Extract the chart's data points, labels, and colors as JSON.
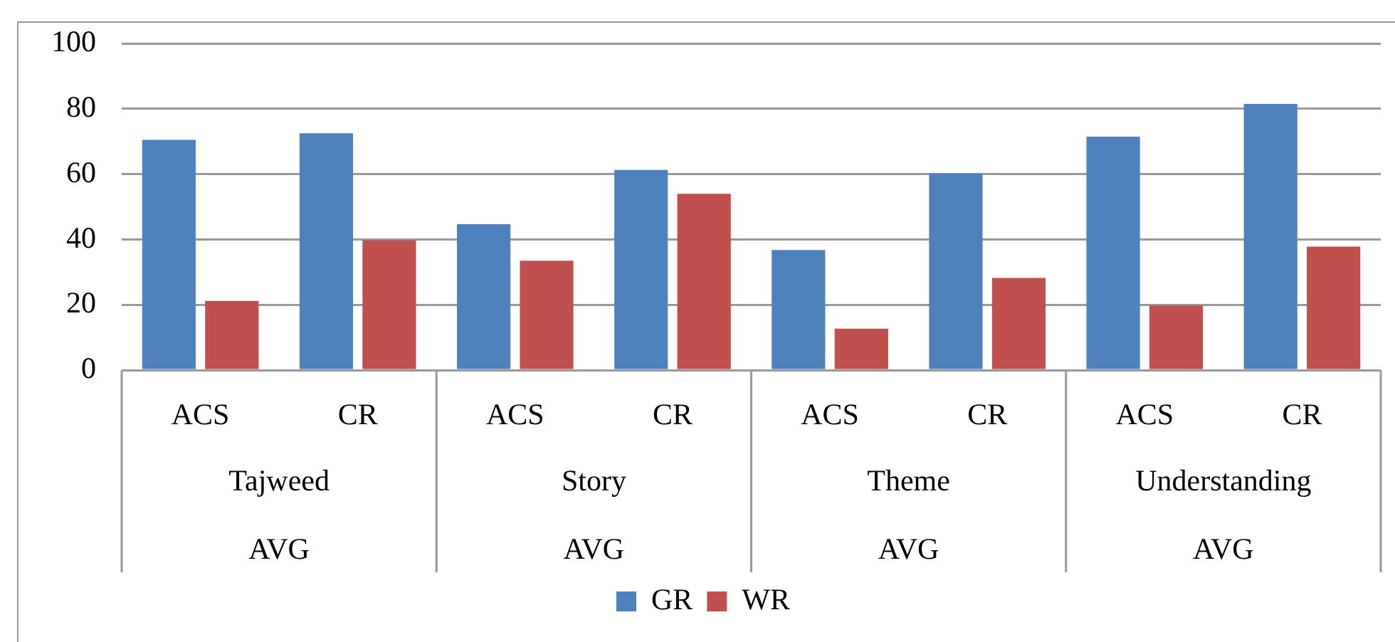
{
  "chart_data": {
    "type": "bar",
    "categories": [
      "ACS",
      "CR",
      "ACS",
      "CR",
      "ACS",
      "CR",
      "ACS",
      "CR"
    ],
    "series": [
      {
        "name": "GR",
        "color": "#4f81bd",
        "values": [
          70.5,
          72.5,
          44.7,
          61.3,
          36.8,
          60.2,
          71.5,
          81.5
        ]
      },
      {
        "name": "WR",
        "color": "#c0504d",
        "values": [
          21.2,
          39.8,
          33.5,
          54,
          12.7,
          28.2,
          19.8,
          37.8
        ]
      }
    ],
    "annotations": [
      "Tajweed",
      "Story",
      "Theme",
      "Understanding",
      "AVG",
      "AVG",
      "AVG",
      "AVG"
    ],
    "ylim": [
      0,
      100
    ],
    "yticks": [
      0,
      20,
      40,
      60,
      80,
      100
    ],
    "grid": "y",
    "legend": "bottom"
  }
}
